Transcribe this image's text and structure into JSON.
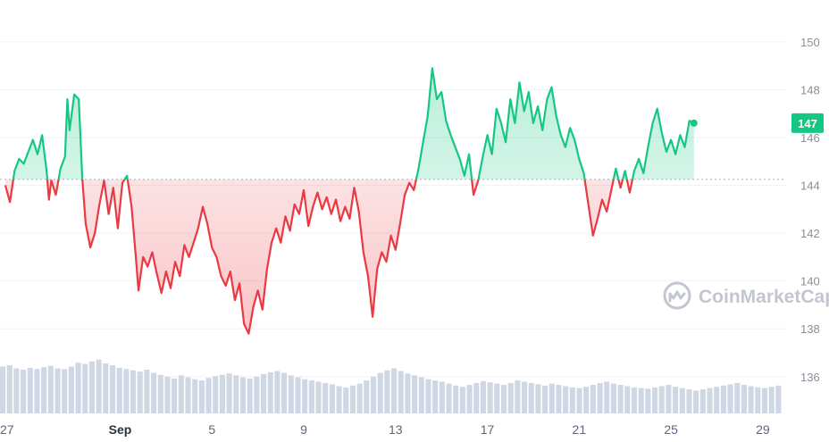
{
  "chart_data": {
    "type": "line",
    "baseline": 144.25,
    "ylim": [
      134.5,
      151
    ],
    "y_ticks": [
      {
        "value": 150,
        "label": "150"
      },
      {
        "value": 148,
        "label": "148"
      },
      {
        "value": 146,
        "label": "146"
      },
      {
        "value": 144,
        "label": "144"
      },
      {
        "value": 142,
        "label": "142"
      },
      {
        "value": 140,
        "label": "140"
      },
      {
        "value": 138,
        "label": "138"
      },
      {
        "value": 136,
        "label": "136"
      }
    ],
    "x_ticks": [
      {
        "day": 27,
        "label": "27",
        "bold": false
      },
      {
        "day": 32,
        "label": "Sep",
        "bold": true
      },
      {
        "day": 36,
        "label": "5",
        "bold": false
      },
      {
        "day": 40,
        "label": "9",
        "bold": false
      },
      {
        "day": 44,
        "label": "13",
        "bold": false
      },
      {
        "day": 48,
        "label": "17",
        "bold": false
      },
      {
        "day": 52,
        "label": "21",
        "bold": false
      },
      {
        "day": 56,
        "label": "25",
        "bold": false
      },
      {
        "day": 60,
        "label": "29",
        "bold": false
      }
    ],
    "current_price": {
      "value": 146.6,
      "label": "147"
    },
    "series": [
      {
        "points": [
          [
            27.0,
            144.0
          ],
          [
            27.2,
            143.3
          ],
          [
            27.4,
            144.6
          ],
          [
            27.6,
            145.1
          ],
          [
            27.8,
            144.9
          ],
          [
            28.0,
            145.4
          ],
          [
            28.2,
            145.9
          ],
          [
            28.4,
            145.3
          ],
          [
            28.6,
            146.1
          ],
          [
            28.8,
            144.6
          ],
          [
            28.9,
            143.4
          ],
          [
            29.0,
            144.2
          ],
          [
            29.2,
            143.6
          ],
          [
            29.4,
            144.7
          ],
          [
            29.6,
            145.2
          ],
          [
            29.7,
            147.6
          ],
          [
            29.8,
            146.3
          ],
          [
            30.0,
            147.8
          ],
          [
            30.2,
            147.6
          ],
          [
            30.35,
            144.3
          ],
          [
            30.5,
            142.4
          ],
          [
            30.7,
            141.4
          ],
          [
            30.9,
            142.0
          ],
          [
            31.1,
            143.2
          ],
          [
            31.3,
            144.2
          ],
          [
            31.5,
            142.8
          ],
          [
            31.7,
            143.9
          ],
          [
            31.9,
            142.2
          ],
          [
            32.1,
            144.1
          ],
          [
            32.3,
            144.4
          ],
          [
            32.5,
            143.1
          ],
          [
            32.7,
            140.8
          ],
          [
            32.8,
            139.6
          ],
          [
            33.0,
            141.0
          ],
          [
            33.2,
            140.6
          ],
          [
            33.4,
            141.2
          ],
          [
            33.6,
            140.3
          ],
          [
            33.8,
            139.5
          ],
          [
            34.0,
            140.4
          ],
          [
            34.2,
            139.7
          ],
          [
            34.4,
            140.8
          ],
          [
            34.6,
            140.2
          ],
          [
            34.8,
            141.5
          ],
          [
            35.0,
            141.0
          ],
          [
            35.2,
            141.6
          ],
          [
            35.4,
            142.2
          ],
          [
            35.6,
            143.1
          ],
          [
            35.8,
            142.4
          ],
          [
            36.0,
            141.4
          ],
          [
            36.2,
            141.0
          ],
          [
            36.4,
            140.2
          ],
          [
            36.6,
            139.8
          ],
          [
            36.8,
            140.4
          ],
          [
            37.0,
            139.2
          ],
          [
            37.2,
            139.9
          ],
          [
            37.4,
            138.2
          ],
          [
            37.6,
            137.8
          ],
          [
            37.8,
            138.9
          ],
          [
            38.0,
            139.6
          ],
          [
            38.2,
            138.8
          ],
          [
            38.4,
            140.5
          ],
          [
            38.6,
            141.6
          ],
          [
            38.8,
            142.2
          ],
          [
            39.0,
            141.6
          ],
          [
            39.2,
            142.7
          ],
          [
            39.4,
            142.1
          ],
          [
            39.6,
            143.2
          ],
          [
            39.8,
            142.8
          ],
          [
            40.0,
            143.8
          ],
          [
            40.2,
            142.3
          ],
          [
            40.4,
            143.1
          ],
          [
            40.6,
            143.7
          ],
          [
            40.8,
            143.0
          ],
          [
            41.0,
            143.5
          ],
          [
            41.2,
            142.8
          ],
          [
            41.4,
            143.4
          ],
          [
            41.6,
            142.5
          ],
          [
            41.8,
            143.1
          ],
          [
            42.0,
            142.6
          ],
          [
            42.2,
            143.9
          ],
          [
            42.4,
            142.9
          ],
          [
            42.6,
            141.2
          ],
          [
            42.8,
            140.2
          ],
          [
            43.0,
            138.5
          ],
          [
            43.2,
            140.5
          ],
          [
            43.4,
            141.2
          ],
          [
            43.6,
            140.8
          ],
          [
            43.8,
            141.9
          ],
          [
            44.0,
            141.3
          ],
          [
            44.2,
            142.4
          ],
          [
            44.4,
            143.6
          ],
          [
            44.6,
            144.1
          ],
          [
            44.8,
            143.8
          ],
          [
            45.0,
            144.7
          ],
          [
            45.2,
            145.8
          ],
          [
            45.4,
            146.9
          ],
          [
            45.6,
            148.9
          ],
          [
            45.8,
            147.6
          ],
          [
            46.0,
            147.9
          ],
          [
            46.2,
            146.7
          ],
          [
            46.4,
            146.1
          ],
          [
            46.6,
            145.6
          ],
          [
            46.8,
            145.1
          ],
          [
            47.0,
            144.4
          ],
          [
            47.2,
            145.3
          ],
          [
            47.4,
            143.6
          ],
          [
            47.6,
            144.2
          ],
          [
            47.8,
            145.2
          ],
          [
            48.0,
            146.1
          ],
          [
            48.2,
            145.3
          ],
          [
            48.4,
            147.2
          ],
          [
            48.6,
            146.6
          ],
          [
            48.8,
            145.8
          ],
          [
            49.0,
            147.6
          ],
          [
            49.2,
            146.6
          ],
          [
            49.4,
            148.3
          ],
          [
            49.6,
            147.1
          ],
          [
            49.8,
            147.9
          ],
          [
            50.0,
            146.6
          ],
          [
            50.2,
            147.3
          ],
          [
            50.4,
            146.3
          ],
          [
            50.6,
            147.6
          ],
          [
            50.8,
            148.1
          ],
          [
            51.0,
            146.9
          ],
          [
            51.2,
            146.1
          ],
          [
            51.4,
            145.6
          ],
          [
            51.6,
            146.4
          ],
          [
            51.8,
            145.9
          ],
          [
            52.0,
            145.1
          ],
          [
            52.2,
            144.5
          ],
          [
            52.4,
            143.2
          ],
          [
            52.6,
            141.9
          ],
          [
            52.8,
            142.6
          ],
          [
            53.0,
            143.4
          ],
          [
            53.2,
            142.9
          ],
          [
            53.4,
            143.8
          ],
          [
            53.6,
            144.7
          ],
          [
            53.8,
            143.9
          ],
          [
            54.0,
            144.6
          ],
          [
            54.2,
            143.7
          ],
          [
            54.4,
            144.6
          ],
          [
            54.6,
            145.1
          ],
          [
            54.8,
            144.5
          ],
          [
            55.0,
            145.6
          ],
          [
            55.2,
            146.6
          ],
          [
            55.4,
            147.2
          ],
          [
            55.6,
            146.2
          ],
          [
            55.8,
            145.4
          ],
          [
            56.0,
            145.9
          ],
          [
            56.2,
            145.3
          ],
          [
            56.4,
            146.1
          ],
          [
            56.6,
            145.6
          ],
          [
            56.8,
            146.7
          ],
          [
            57.0,
            146.6
          ]
        ]
      }
    ],
    "volume": [
      0.74,
      0.76,
      0.71,
      0.69,
      0.72,
      0.7,
      0.73,
      0.75,
      0.71,
      0.7,
      0.74,
      0.8,
      0.78,
      0.82,
      0.85,
      0.79,
      0.76,
      0.72,
      0.7,
      0.68,
      0.66,
      0.69,
      0.64,
      0.61,
      0.58,
      0.55,
      0.6,
      0.57,
      0.54,
      0.52,
      0.56,
      0.59,
      0.61,
      0.63,
      0.6,
      0.57,
      0.55,
      0.58,
      0.62,
      0.65,
      0.67,
      0.64,
      0.6,
      0.57,
      0.54,
      0.52,
      0.5,
      0.48,
      0.46,
      0.43,
      0.41,
      0.44,
      0.47,
      0.52,
      0.58,
      0.64,
      0.68,
      0.71,
      0.67,
      0.63,
      0.6,
      0.57,
      0.54,
      0.52,
      0.5,
      0.47,
      0.44,
      0.42,
      0.45,
      0.48,
      0.51,
      0.49,
      0.47,
      0.45,
      0.48,
      0.52,
      0.5,
      0.48,
      0.46,
      0.44,
      0.47,
      0.45,
      0.43,
      0.41,
      0.4,
      0.42,
      0.45,
      0.48,
      0.5,
      0.47,
      0.45,
      0.43,
      0.41,
      0.4,
      0.39,
      0.41,
      0.43,
      0.45,
      0.42,
      0.4,
      0.38,
      0.36,
      0.38,
      0.4,
      0.42,
      0.44,
      0.46,
      0.48,
      0.45,
      0.43,
      0.41,
      0.4,
      0.42,
      0.44
    ]
  }
}
